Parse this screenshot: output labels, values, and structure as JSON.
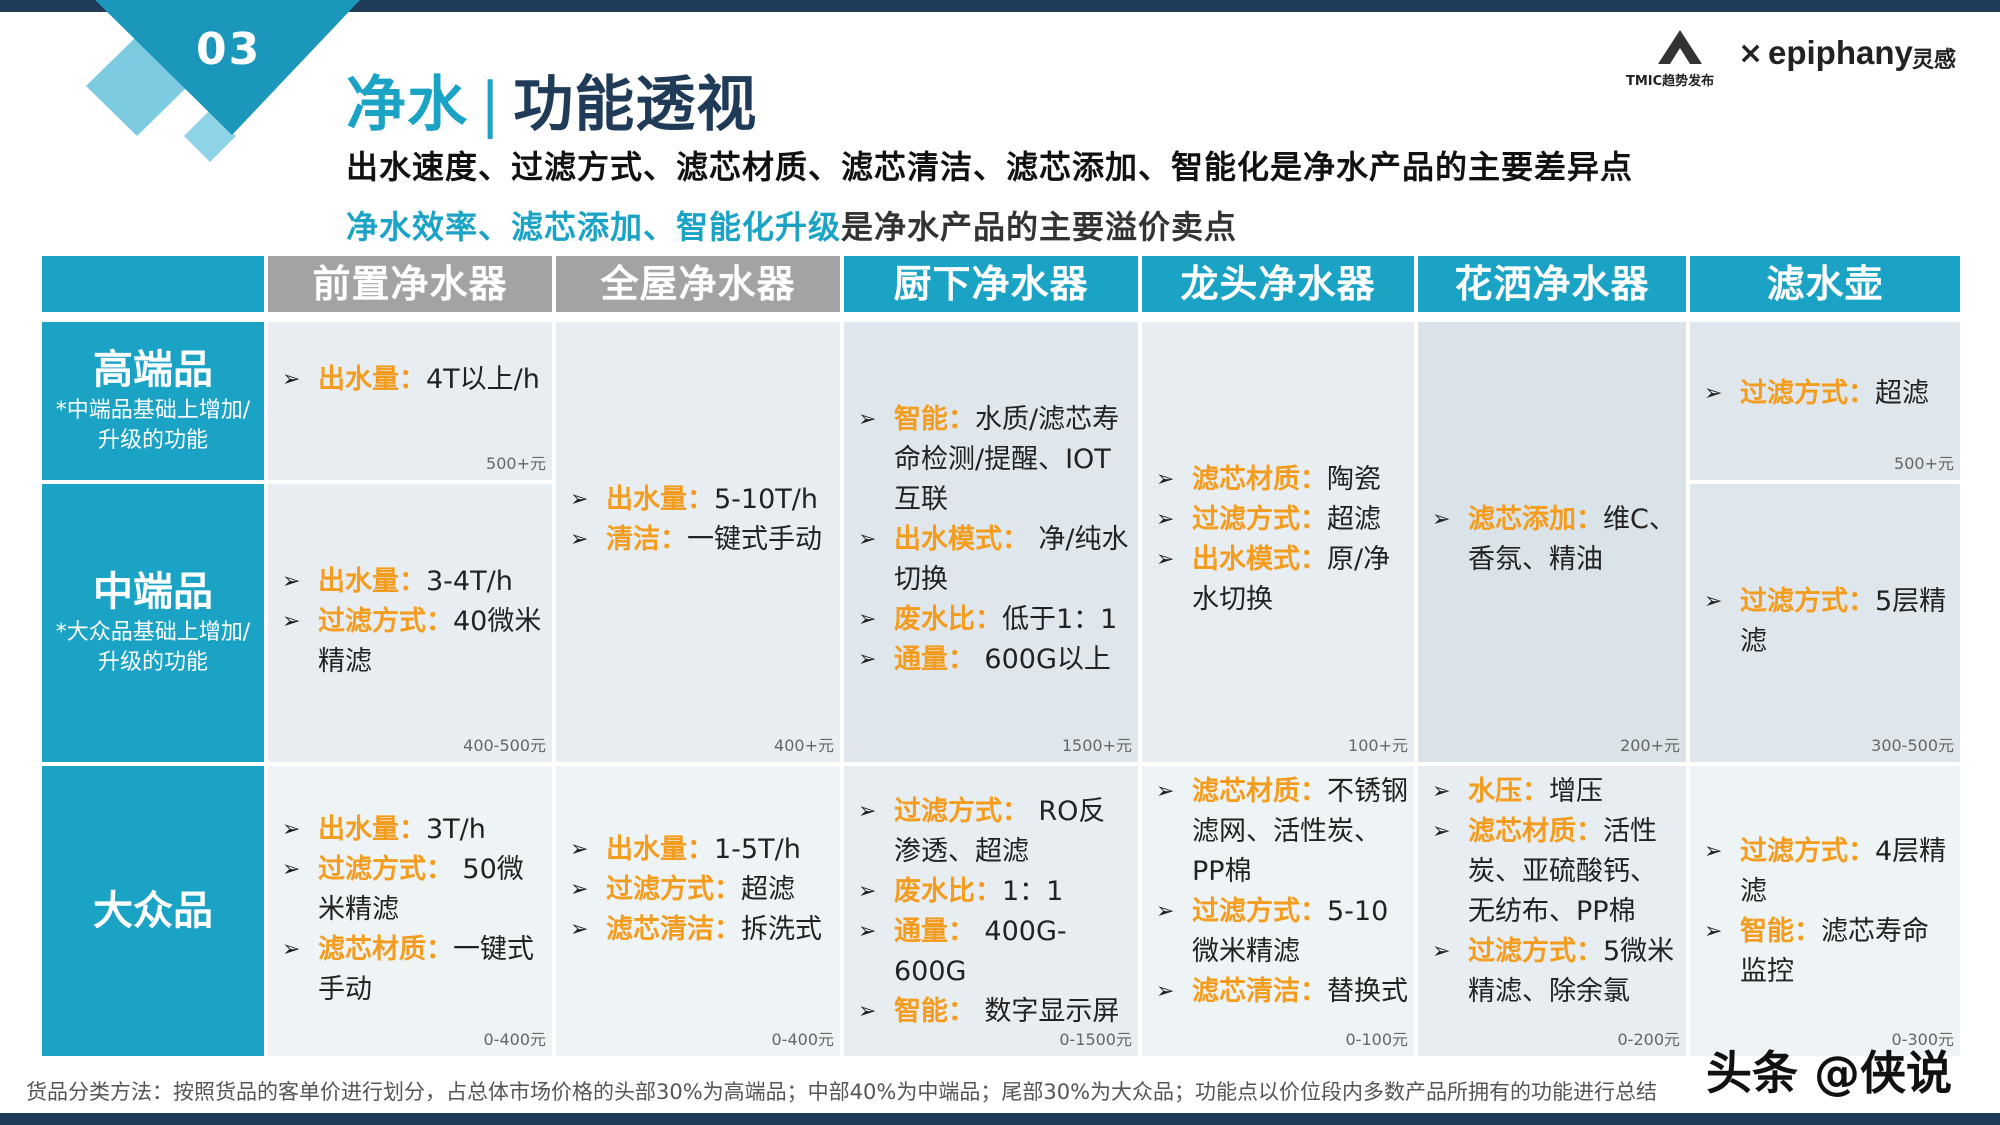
{
  "section_number": "03",
  "title": {
    "part1": "净水",
    "separator": "|",
    "part2": "功能透视"
  },
  "subtitle1": "出水速度、过滤方式、滤芯材质、滤芯清洁、滤芯添加、智能化是净水产品的主要差异点",
  "subtitle2": {
    "highlight": "净水效率、滤芯添加、智能化升级",
    "rest": "是净水产品的主要溢价卖点"
  },
  "logo": {
    "tmic": "TMIC趋势发布",
    "x": "×",
    "epiphany": "epiphany",
    "cn": "灵感"
  },
  "columns": [
    "前置净水器",
    "全屋净水器",
    "厨下净水器",
    "龙头净水器",
    "花洒净水器",
    "滤水壶"
  ],
  "rows": [
    {
      "label": "高端品",
      "note": "*中端品基础上增加/升级的功能"
    },
    {
      "label": "中端品",
      "note": "*大众品基础上增加/升级的功能"
    },
    {
      "label": "大众品",
      "note": ""
    }
  ],
  "cells": {
    "c1_high": {
      "items": [
        {
          "key": "出水量",
          "sep": "：",
          "val": "4T以上/h"
        }
      ],
      "price": "500+元"
    },
    "c1_mid": {
      "items": [
        {
          "key": "出水量",
          "sep": "：",
          "val": "3-4T/h"
        },
        {
          "key": "过滤方式",
          "sep": "：",
          "val": "40微米精滤"
        }
      ],
      "price": "400-500元"
    },
    "c1_low": {
      "items": [
        {
          "key": "出水量",
          "sep": "：",
          "val": "3T/h"
        },
        {
          "key": "过滤方式",
          "sep": "： ",
          "val": "50微米精滤"
        },
        {
          "key": "滤芯材质",
          "sep": "：",
          "val": "一键式手动"
        }
      ],
      "price": "0-400元"
    },
    "c2_hm": {
      "items": [
        {
          "key": "出水量",
          "sep": "：",
          "val": "5-10T/h"
        },
        {
          "key": "清洁",
          "sep": "：",
          "val": "一键式手动"
        }
      ],
      "price": "400+元"
    },
    "c2_low": {
      "items": [
        {
          "key": "出水量",
          "sep": "：",
          "val": "1-5T/h"
        },
        {
          "key": "过滤方式",
          "sep": "：",
          "val": "超滤"
        },
        {
          "key": "滤芯清洁",
          "sep": "：",
          "val": "拆洗式"
        }
      ],
      "price": "0-400元"
    },
    "c3_hm": {
      "items": [
        {
          "key": "智能",
          "sep": "：",
          "val": "水质/滤芯寿命检测/提醒、IOT互联"
        },
        {
          "key": "出水模式",
          "sep": "： ",
          "val": "净/纯水切换"
        },
        {
          "key": "废水比",
          "sep": "：",
          "val": "低于1：1"
        },
        {
          "key": "通量",
          "sep": "： ",
          "val": "600G以上"
        }
      ],
      "price": "1500+元"
    },
    "c3_low": {
      "items": [
        {
          "key": "过滤方式",
          "sep": "： ",
          "val": "RO反渗透、超滤"
        },
        {
          "key": "废水比",
          "sep": "：",
          "val": "1：1"
        },
        {
          "key": "通量",
          "sep": "： ",
          "val": "400G-600G"
        },
        {
          "key": "智能",
          "sep": "： ",
          "val": "数字显示屏"
        }
      ],
      "price": "0-1500元"
    },
    "c4_hm": {
      "items": [
        {
          "key": "滤芯材质",
          "sep": "：",
          "val": "陶瓷"
        },
        {
          "key": "过滤方式",
          "sep": "：",
          "val": "超滤"
        },
        {
          "key": "出水模式",
          "sep": "：",
          "val": "原/净水切换"
        }
      ],
      "price": "100+元"
    },
    "c4_low": {
      "items": [
        {
          "key": "滤芯材质",
          "sep": "：",
          "val": "不锈钢滤网、活性炭、PP棉"
        },
        {
          "key": "过滤方式",
          "sep": "：",
          "val": "5-10微米精滤"
        },
        {
          "key": "滤芯清洁",
          "sep": "：",
          "val": "替换式"
        }
      ],
      "price": "0-100元"
    },
    "c5_hm": {
      "items": [
        {
          "key": "滤芯添加",
          "sep": "：",
          "val": "维C、香氛、精油"
        }
      ],
      "price": "200+元"
    },
    "c5_low": {
      "items": [
        {
          "key": "水压",
          "sep": "：",
          "val": "增压"
        },
        {
          "key": "滤芯材质",
          "sep": "：",
          "val": "活性炭、亚硫酸钙、无纺布、PP棉"
        },
        {
          "key": "过滤方式",
          "sep": "：",
          "val": "5微米精滤、除余氯"
        }
      ],
      "price": "0-200元"
    },
    "c6_high": {
      "items": [
        {
          "key": "过滤方式",
          "sep": "：",
          "val": "超滤"
        }
      ],
      "price": "500+元"
    },
    "c6_mid": {
      "items": [
        {
          "key": "过滤方式",
          "sep": "：",
          "val": "5层精滤"
        }
      ],
      "price": "300-500元"
    },
    "c6_low": {
      "items": [
        {
          "key": "过滤方式",
          "sep": "：",
          "val": "4层精滤"
        },
        {
          "key": "智能",
          "sep": "：",
          "val": "滤芯寿命监控"
        }
      ],
      "price": "0-300元"
    }
  },
  "footer": "货品分类方法：按照货品的客单价进行划分，占总体市场价格的头部30%为高端品；中部40%为中端品；尾部30%为大众品；功能点以价位段内多数产品所拥有的功能进行总结",
  "watermark": "头条 @侠说",
  "colors": {
    "teal": "#1aa3c5",
    "navy": "#1f3b57",
    "orange": "#f39c1e",
    "gray_header": "#a3a3a3",
    "cell_light": "#e9eef2",
    "cell_mid": "#d9e3e8"
  }
}
